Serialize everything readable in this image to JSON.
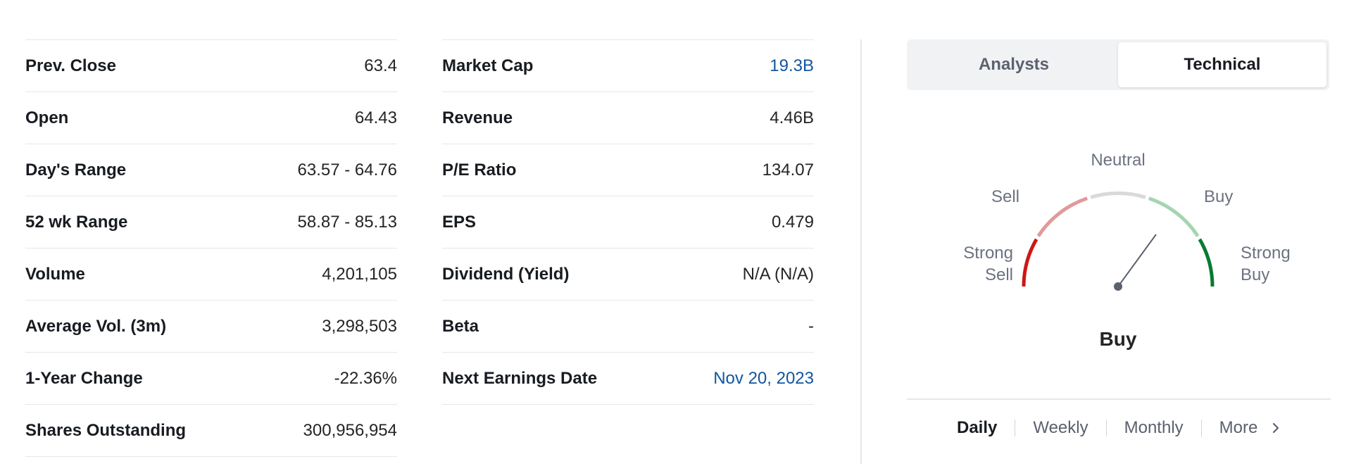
{
  "stats_left": [
    {
      "label": "Prev. Close",
      "value": "63.4"
    },
    {
      "label": "Open",
      "value": "64.43"
    },
    {
      "label": "Day's Range",
      "value": "63.57 - 64.76"
    },
    {
      "label": "52 wk Range",
      "value": "58.87 - 85.13"
    },
    {
      "label": "Volume",
      "value": "4,201,105"
    },
    {
      "label": "Average Vol. (3m)",
      "value": "3,298,503"
    },
    {
      "label": "1-Year Change",
      "value": "-22.36%"
    },
    {
      "label": "Shares Outstanding",
      "value": "300,956,954"
    }
  ],
  "stats_right": [
    {
      "label": "Market Cap",
      "value": "19.3B"
    },
    {
      "label": "Revenue",
      "value": "4.46B"
    },
    {
      "label": "P/E Ratio",
      "value": "134.07"
    },
    {
      "label": "EPS",
      "value": "0.479"
    },
    {
      "label": "Dividend (Yield)",
      "value": "N/A (N/A)"
    },
    {
      "label": "Beta",
      "value": "-"
    },
    {
      "label": "Next Earnings Date",
      "value": "Nov 20, 2023"
    }
  ],
  "tabs": [
    {
      "label": "Analysts",
      "active": false
    },
    {
      "label": "Technical",
      "active": true
    }
  ],
  "gauge": {
    "labels": {
      "strong_sell_line1": "Strong",
      "strong_sell_line2": "Sell",
      "sell": "Sell",
      "neutral": "Neutral",
      "buy": "Buy",
      "strong_buy_line1": "Strong",
      "strong_buy_line2": "Buy"
    },
    "result": "Buy",
    "colors": {
      "strong_sell": "#cc1717",
      "sell": "#e09a9a",
      "neutral": "#d9d9d9",
      "buy": "#a6d4b0",
      "strong_buy": "#0a7a32",
      "needle": "#5b616e"
    }
  },
  "periods": [
    {
      "label": "Daily",
      "active": true
    },
    {
      "label": "Weekly",
      "active": false
    },
    {
      "label": "Monthly",
      "active": false
    },
    {
      "label": "More",
      "active": false
    }
  ],
  "icons": {
    "more": "chevron-right-icon"
  }
}
